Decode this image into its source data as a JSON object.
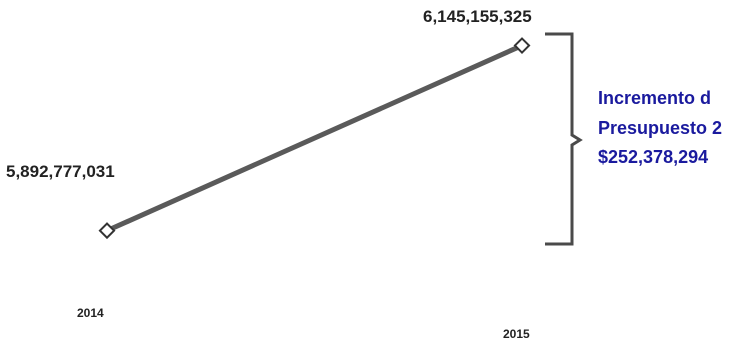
{
  "chart_data": {
    "type": "line",
    "title": "",
    "xlabel": "",
    "ylabel": "",
    "categories": [
      "2014",
      "2015"
    ],
    "series": [
      {
        "values": [
          5892777031,
          6145155325
        ]
      }
    ],
    "data_labels": [
      "5,892,777,031",
      "6,145,155,325"
    ],
    "ylim": [
      5850000000,
      6180000000
    ],
    "grid": false,
    "legend": "none",
    "colors": {
      "line": "#5a5a5a",
      "marker_fill": "#ffffff",
      "marker_stroke": "#333333",
      "bracket": "#4a4a4a",
      "annotation": "#1a1a9e"
    },
    "annotation": {
      "lines": [
        "Incremento d",
        "Presupuesto 2",
        "$252,378,294"
      ]
    }
  }
}
